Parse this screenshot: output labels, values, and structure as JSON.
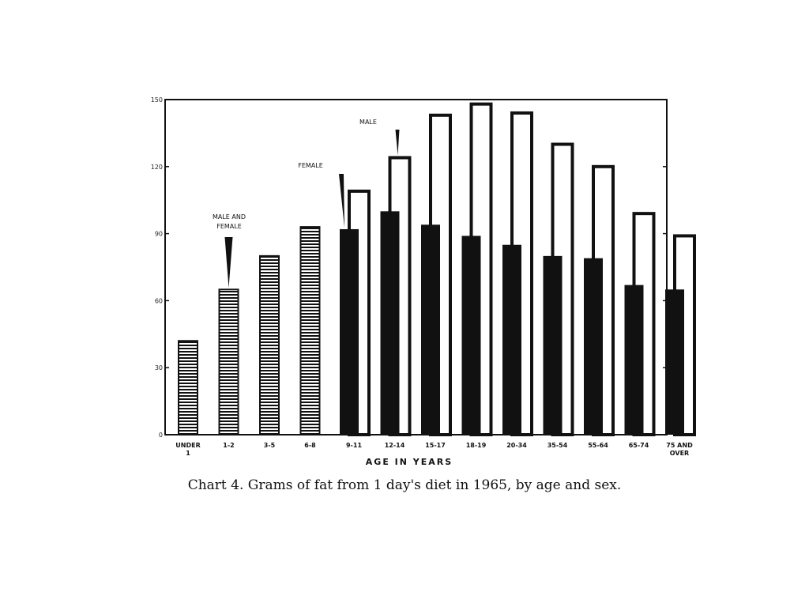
{
  "caption": "Chart 4. Grams of fat from 1 day's diet in 1965, by age and sex.",
  "chart_data": {
    "type": "bar",
    "title": "",
    "xlabel": "AGE IN YEARS",
    "ylabel": "",
    "ylim": [
      0,
      150
    ],
    "yticks": [
      0,
      30,
      60,
      90,
      120,
      150
    ],
    "ytick_labels": [
      "0",
      "30",
      "60",
      "90",
      "120",
      "150"
    ],
    "grid": false,
    "categories": [
      "UNDER 1",
      "1-2",
      "3-5",
      "6-8",
      "9-11",
      "12-14",
      "15-17",
      "18-19",
      "20-34",
      "35-54",
      "55-64",
      "65-74",
      "75 AND OVER"
    ],
    "series": [
      {
        "name": "MALE AND FEMALE",
        "values": [
          42,
          65,
          80,
          93,
          null,
          null,
          null,
          null,
          null,
          null,
          null,
          null,
          null
        ]
      },
      {
        "name": "FEMALE",
        "values": [
          null,
          null,
          null,
          null,
          92,
          100,
          94,
          89,
          85,
          80,
          79,
          67,
          65
        ]
      },
      {
        "name": "MALE",
        "values": [
          null,
          null,
          null,
          null,
          109,
          124,
          143,
          148,
          144,
          130,
          120,
          99,
          89
        ]
      }
    ],
    "annotations": [
      {
        "text": "MALE AND FEMALE",
        "category": "1-2"
      },
      {
        "text": "FEMALE",
        "category": "9-11"
      },
      {
        "text": "MALE",
        "category": "12-14"
      }
    ],
    "colors": {
      "female": "#111111",
      "male_outline": "#111111",
      "combined_stripe": "#111111",
      "background": "#ffffff"
    }
  }
}
